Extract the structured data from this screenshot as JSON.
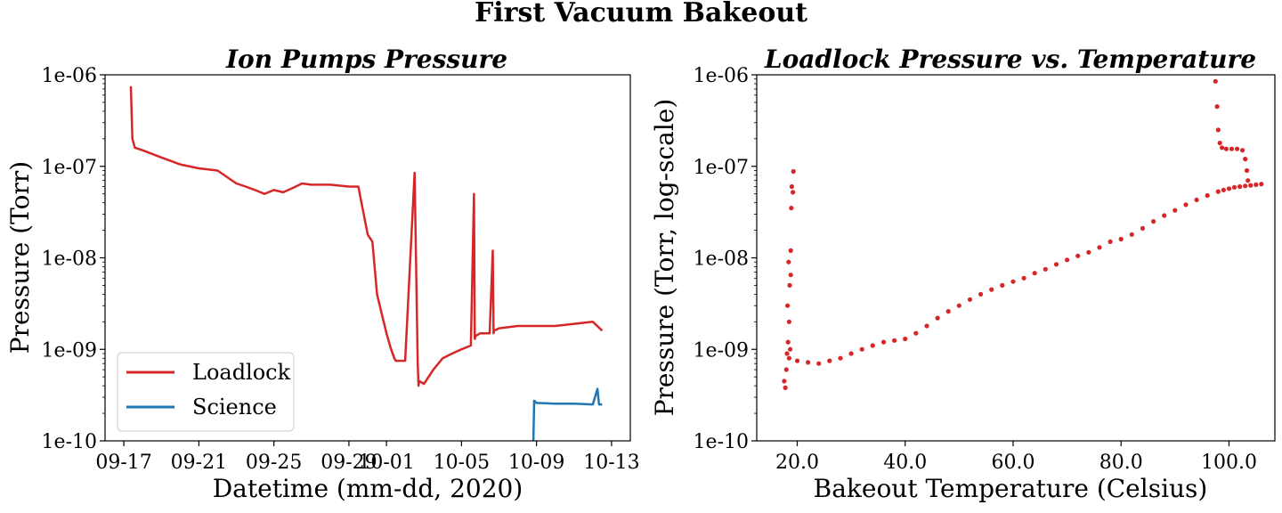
{
  "figure": {
    "suptitle": "First Vacuum Bakeout"
  },
  "chart_data": [
    {
      "type": "line",
      "title": "Ion Pumps Pressure",
      "xlabel": "Datetime (mm-dd, 2020)",
      "ylabel": "Pressure (Torr)",
      "yscale": "log",
      "ylim": [
        1e-10,
        1e-06
      ],
      "xlim": [
        "2020-09-16",
        "2020-10-14"
      ],
      "x_tick_labels": [
        "09-17",
        "09-21",
        "09-25",
        "09-29",
        "10-01",
        "10-05",
        "10-09",
        "10-13"
      ],
      "x_tick_dates": [
        "2020-09-17",
        "2020-09-21",
        "2020-09-25",
        "2020-09-29",
        "2020-10-01",
        "2020-10-05",
        "2020-10-09",
        "2020-10-13"
      ],
      "y_tick_labels": [
        "1e-06",
        "1e-07",
        "1e-08",
        "1e-09",
        "1e-10"
      ],
      "y_tick_values": [
        1e-06,
        1e-07,
        1e-08,
        1e-09,
        1e-10
      ],
      "legend": {
        "position": "lower-left",
        "entries": [
          "Loadlock",
          "Science"
        ]
      },
      "grid": false,
      "series": [
        {
          "name": "Loadlock",
          "color": "#d62728",
          "x": [
            "2020-09-17 09:00",
            "2020-09-17 11:00",
            "2020-09-17 14:00",
            "2020-09-18",
            "2020-09-19",
            "2020-09-20",
            "2020-09-21",
            "2020-09-22",
            "2020-09-23",
            "2020-09-23 12:00",
            "2020-09-24",
            "2020-09-24 12:00",
            "2020-09-25",
            "2020-09-25 12:00",
            "2020-09-26",
            "2020-09-26 12:00",
            "2020-09-27",
            "2020-09-28",
            "2020-09-29",
            "2020-09-29 12:00",
            "2020-09-30",
            "2020-09-30 06:00",
            "2020-09-30 12:00",
            "2020-10-01",
            "2020-10-01 06:00",
            "2020-10-01 10:00",
            "2020-10-01 12:00",
            "2020-10-02",
            "2020-10-02 12:00",
            "2020-10-02 16:00",
            "2020-10-02 17:00",
            "2020-10-02 18:00",
            "2020-10-03",
            "2020-10-03 12:00",
            "2020-10-04",
            "2020-10-04 12:00",
            "2020-10-05",
            "2020-10-05 12:00",
            "2020-10-05 16:00",
            "2020-10-05 17:00",
            "2020-10-05 18:00",
            "2020-10-06",
            "2020-10-06 12:00",
            "2020-10-06 16:00",
            "2020-10-06 17:00",
            "2020-10-06 18:00",
            "2020-10-07",
            "2020-10-08",
            "2020-10-09",
            "2020-10-10",
            "2020-10-11",
            "2020-10-12",
            "2020-10-12 12:00"
          ],
          "y": [
            7.5e-07,
            2e-07,
            1.6e-07,
            1.5e-07,
            1.25e-07,
            1.05e-07,
            9.5e-08,
            9e-08,
            6.5e-08,
            6e-08,
            5.5e-08,
            5e-08,
            5.5e-08,
            5.2e-08,
            5.8e-08,
            6.5e-08,
            6.3e-08,
            6.3e-08,
            6e-08,
            6e-08,
            1.8e-08,
            1.5e-08,
            4e-09,
            1.5e-09,
            1e-09,
            8e-10,
            7.5e-10,
            7.5e-10,
            8.5e-08,
            7e-10,
            4e-10,
            4.5e-10,
            4.2e-10,
            6e-10,
            8e-10,
            9e-10,
            1e-09,
            1.1e-09,
            5e-08,
            1.3e-09,
            1.4e-09,
            1.5e-09,
            1.5e-09,
            1.2e-08,
            1.5e-09,
            1.6e-09,
            1.7e-09,
            1.8e-09,
            1.8e-09,
            1.8e-09,
            1.9e-09,
            2e-09,
            1.6e-09
          ]
        },
        {
          "name": "Science",
          "color": "#1f77b4",
          "x": [
            "2020-10-08 20:00",
            "2020-10-08 21:00",
            "2020-10-08 22:00",
            "2020-10-09",
            "2020-10-10",
            "2020-10-11",
            "2020-10-12",
            "2020-10-12 06:00",
            "2020-10-12 08:00",
            "2020-10-12 12:00"
          ],
          "y": [
            9e-11,
            2.75e-10,
            2.7e-10,
            2.6e-10,
            2.55e-10,
            2.55e-10,
            2.5e-10,
            3.7e-10,
            2.5e-10,
            2.5e-10
          ]
        }
      ]
    },
    {
      "type": "scatter",
      "title": "Loadlock Pressure vs. Temperature",
      "xlabel": "Bakeout Temperature (Celsius)",
      "ylabel": "Pressure (Torr, log-scale)",
      "yscale": "log",
      "ylim": [
        1e-10,
        1e-06
      ],
      "xlim": [
        12.5,
        108.5
      ],
      "x_tick_labels": [
        "20.0",
        "40.0",
        "60.0",
        "80.0",
        "100.0"
      ],
      "x_tick_values": [
        20,
        40,
        60,
        80,
        100
      ],
      "y_tick_labels": [
        "1e-06",
        "1e-07",
        "1e-08",
        "1e-09",
        "1e-10"
      ],
      "y_tick_values": [
        1e-06,
        1e-07,
        1e-08,
        1e-09,
        1e-10
      ],
      "grid": false,
      "series": [
        {
          "color": "#d62728",
          "x": [
            17.6,
            17.8,
            18.0,
            18.1,
            18.3,
            18.5,
            18.7,
            18.8,
            18.6,
            18.4,
            18.9,
            19.0,
            19.2,
            19.3,
            18.2,
            18.5,
            18.8,
            20,
            22,
            24,
            26,
            28,
            30,
            32,
            34,
            36,
            38,
            40,
            42,
            44,
            46,
            48,
            50,
            52,
            54,
            56,
            58,
            60,
            62,
            64,
            66,
            68,
            70,
            72,
            74,
            76,
            78,
            80,
            82,
            84,
            86,
            88,
            90,
            92,
            94,
            96,
            98,
            99,
            100,
            101,
            102,
            103,
            104,
            105,
            106,
            97.5,
            97.8,
            98.0,
            98.3,
            98.7,
            99.5,
            100.5,
            101.5,
            102.5,
            103.0,
            103.3,
            103.5
          ],
          "y": [
            4.5e-10,
            3.8e-10,
            6e-10,
            9e-10,
            1.2e-09,
            8e-10,
            1e-09,
            6.5e-09,
            5e-09,
            9e-09,
            3.5e-08,
            6e-08,
            5.2e-08,
            8.8e-08,
            3e-09,
            2e-09,
            1.2e-08,
            7.5e-10,
            7.2e-10,
            7e-10,
            7.5e-10,
            8e-10,
            9e-10,
            1e-09,
            1.1e-09,
            1.2e-09,
            1.25e-09,
            1.3e-09,
            1.5e-09,
            1.8e-09,
            2.2e-09,
            2.6e-09,
            3e-09,
            3.5e-09,
            4e-09,
            4.5e-09,
            5e-09,
            5.5e-09,
            6e-09,
            6.8e-09,
            7.5e-09,
            8.5e-09,
            9.5e-09,
            1.05e-08,
            1.15e-08,
            1.3e-08,
            1.5e-08,
            1.6e-08,
            1.8e-08,
            2.1e-08,
            2.5e-08,
            2.9e-08,
            3.3e-08,
            3.8e-08,
            4.3e-08,
            4.8e-08,
            5.3e-08,
            5.5e-08,
            5.7e-08,
            5.9e-08,
            6e-08,
            6.1e-08,
            6.2e-08,
            6.3e-08,
            6.4e-08,
            8.5e-07,
            4.5e-07,
            2.5e-07,
            1.8e-07,
            1.6e-07,
            1.55e-07,
            1.55e-07,
            1.55e-07,
            1.5e-07,
            1.2e-07,
            9e-08,
            7e-08
          ]
        }
      ]
    }
  ]
}
